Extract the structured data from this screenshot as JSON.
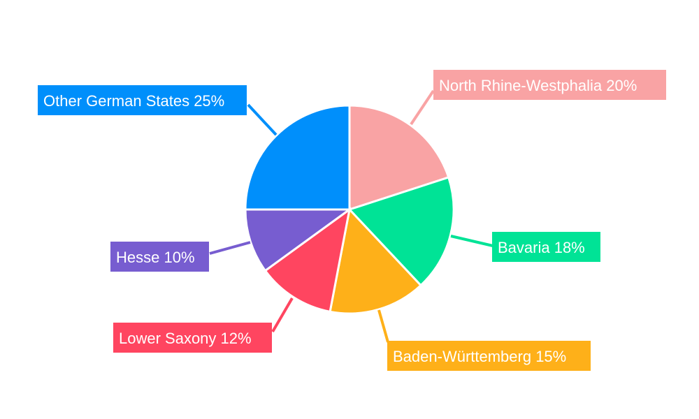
{
  "chart_data": {
    "type": "pie",
    "title": "",
    "start_angle": "top",
    "direction": "clockwise",
    "slices": [
      {
        "label": "North Rhine-Westphalia",
        "value": 20,
        "display": "North Rhine-Westphalia 20%",
        "color": "#F9A3A4"
      },
      {
        "label": "Bavaria",
        "value": 18,
        "display": "Bavaria 18%",
        "color": "#00E396"
      },
      {
        "label": "Baden-Württemberg",
        "value": 15,
        "display": "Baden-Württemberg 15%",
        "color": "#FEB019"
      },
      {
        "label": "Lower Saxony",
        "value": 12,
        "display": "Lower Saxony 12%",
        "color": "#FF4560"
      },
      {
        "label": "Hesse",
        "value": 10,
        "display": "Hesse 10%",
        "color": "#775DD0"
      },
      {
        "label": "Other German States",
        "value": 25,
        "display": "Other German States 25%",
        "color": "#008FFB"
      }
    ]
  }
}
